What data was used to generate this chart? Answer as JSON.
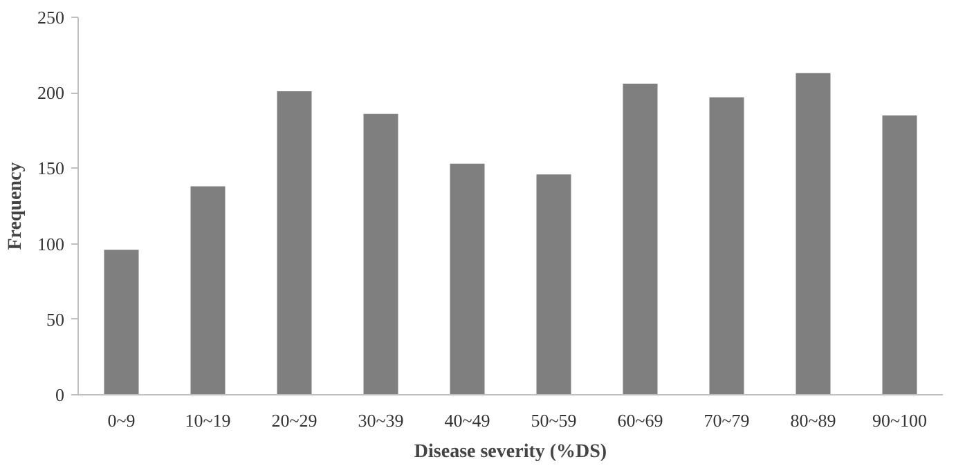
{
  "chart_data": {
    "type": "bar",
    "xlabel": "Disease severity (%DS)",
    "ylabel": "Frequency",
    "categories": [
      "0~9",
      "10~19",
      "20~29",
      "30~39",
      "40~49",
      "50~59",
      "60~69",
      "70~79",
      "80~89",
      "90~100"
    ],
    "values": [
      96,
      138,
      201,
      186,
      153,
      146,
      206,
      197,
      213,
      185
    ],
    "color": "#7f7f7f",
    "ylim": [
      0,
      250
    ],
    "yticks": [
      0,
      50,
      100,
      150,
      200,
      250
    ],
    "grid": false
  }
}
